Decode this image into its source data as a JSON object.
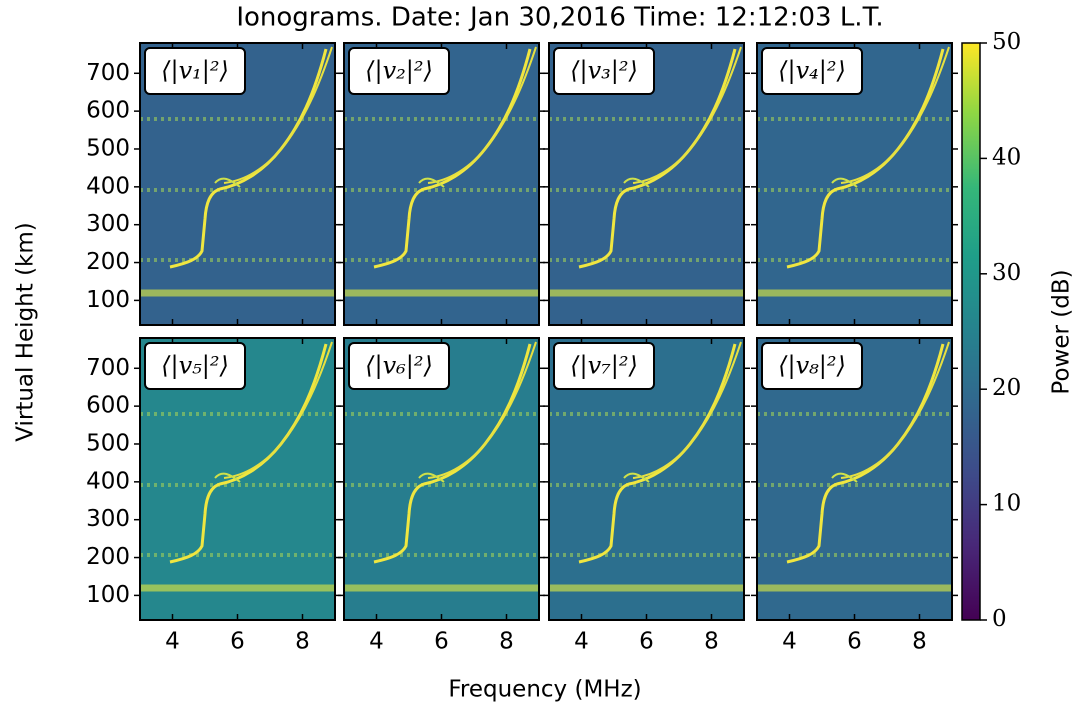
{
  "chart_data": {
    "type": "heatmap",
    "title": "Ionograms.  Date: Jan 30,2016 Time: 12:12:03 L.T.",
    "xlabel": "Frequency (MHz)",
    "ylabel": "Virtual Height (km)",
    "xlim": [
      3,
      9
    ],
    "xticks": [
      4,
      6,
      8
    ],
    "ylim": [
      35,
      780
    ],
    "yticks": [
      100,
      200,
      300,
      400,
      500,
      600,
      700
    ],
    "panels": [
      {
        "label": "⟨|v₁|²⟩",
        "color": "#33628d"
      },
      {
        "label": "⟨|v₂|²⟩",
        "color": "#32648e"
      },
      {
        "label": "⟨|v₃|²⟩",
        "color": "#33628d"
      },
      {
        "label": "⟨|v₄|²⟩",
        "color": "#31668e"
      },
      {
        "label": "⟨|v₅|²⟩",
        "color": "#25878d"
      },
      {
        "label": "⟨|v₆|²⟩",
        "color": "#277d8e"
      },
      {
        "label": "⟨|v₇|²⟩",
        "color": "#2c6f8e"
      },
      {
        "label": "⟨|v₈|²⟩",
        "color": "#30698e"
      }
    ],
    "colorbar": {
      "label": "Power (dB)",
      "lim": [
        0,
        50
      ],
      "ticks": [
        0,
        10,
        20,
        30,
        40,
        50
      ]
    }
  }
}
